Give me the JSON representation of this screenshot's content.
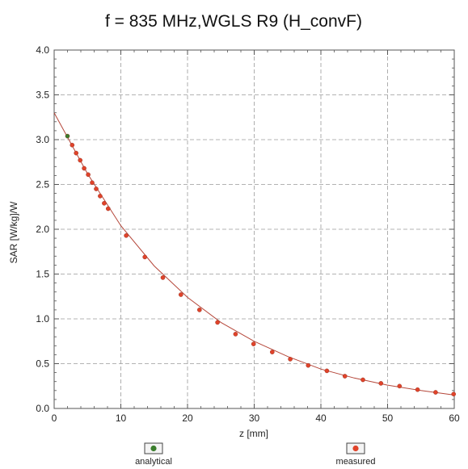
{
  "chart_data": {
    "type": "scatter",
    "title": "f = 835 MHz,WGLS R9 (H_convF)",
    "xlabel": "z [mm]",
    "ylabel": "SAR [W/kg]/W",
    "xlim": [
      0,
      60
    ],
    "ylim": [
      0,
      4.0
    ],
    "x_ticks": [
      "0",
      "10",
      "20",
      "30",
      "40",
      "50",
      "60"
    ],
    "y_ticks": [
      "0.0",
      "0.5",
      "1.0",
      "1.5",
      "2.0",
      "2.5",
      "3.0",
      "3.5",
      "4.0"
    ],
    "grid": true,
    "legend_position": "bottom",
    "series": [
      {
        "name": "analytical",
        "color": "#3a7d2c",
        "style": "line",
        "x": [
          0,
          5,
          10,
          15,
          20,
          25,
          30,
          35,
          40,
          45,
          50,
          55,
          60
        ],
        "y": [
          3.3,
          2.62,
          2.04,
          1.59,
          1.24,
          0.96,
          0.75,
          0.58,
          0.44,
          0.34,
          0.26,
          0.2,
          0.15
        ]
      },
      {
        "name": "analytical",
        "color": "#3a7d2c",
        "style": "marker",
        "x": [
          2.0
        ],
        "y": [
          3.04
        ]
      },
      {
        "name": "measured",
        "color": "#e0432a",
        "style": "marker",
        "x": [
          2.7,
          3.3,
          3.9,
          4.5,
          5.1,
          5.7,
          6.3,
          6.9,
          7.5,
          8.1,
          10.8,
          13.6,
          16.3,
          19.0,
          21.8,
          24.5,
          27.2,
          29.9,
          32.7,
          35.4,
          38.1,
          40.9,
          43.6,
          46.3,
          49.0,
          51.8,
          54.5,
          57.2,
          59.9
        ],
        "y": [
          2.94,
          2.85,
          2.77,
          2.68,
          2.61,
          2.52,
          2.45,
          2.37,
          2.29,
          2.23,
          1.93,
          1.69,
          1.46,
          1.27,
          1.1,
          0.96,
          0.83,
          0.72,
          0.63,
          0.55,
          0.48,
          0.42,
          0.36,
          0.32,
          0.28,
          0.25,
          0.21,
          0.18,
          0.16
        ]
      }
    ],
    "legend": [
      {
        "label": "analytical",
        "color": "#3a7d2c"
      },
      {
        "label": "measured",
        "color": "#e0432a"
      }
    ]
  }
}
